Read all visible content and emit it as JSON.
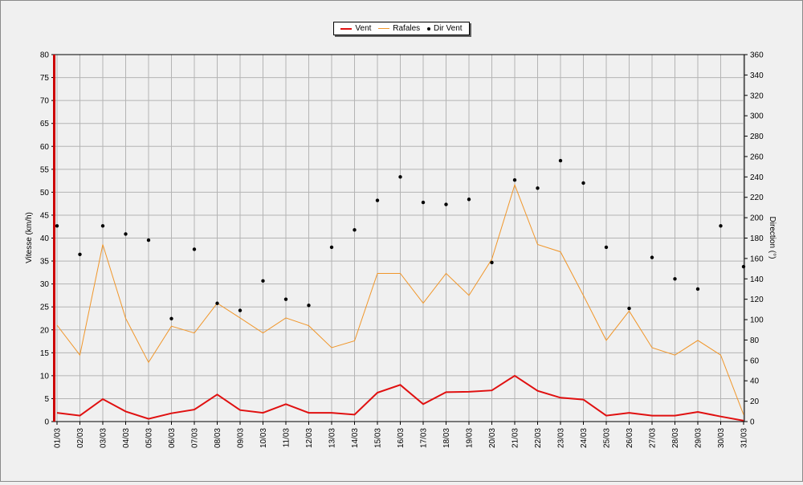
{
  "colors": {
    "vent": "#e01010",
    "rafales": "#f0962a",
    "dir_vent": "#000000",
    "grid": "#b4b4b4",
    "plot_bg": "#f0f0f0"
  },
  "legend": {
    "vent": "Vent",
    "rafales": "Rafales",
    "dir_vent": "Dir Vent"
  },
  "chart_data": {
    "type": "line",
    "title": "",
    "xlabel": "",
    "ylabel": "Vitesse (km/h)",
    "y2label": "Direction (°)",
    "ylim": [
      0,
      80
    ],
    "y2lim": [
      0,
      360
    ],
    "yticks": [
      0,
      5,
      10,
      15,
      20,
      25,
      30,
      35,
      40,
      45,
      50,
      55,
      60,
      65,
      70,
      75,
      80
    ],
    "y2ticks": [
      0,
      20,
      40,
      60,
      80,
      100,
      120,
      140,
      160,
      180,
      200,
      220,
      240,
      260,
      280,
      300,
      320,
      340,
      360
    ],
    "grid": true,
    "legend_position": "top-center",
    "categories": [
      "01/03",
      "02/03",
      "03/03",
      "04/03",
      "05/03",
      "06/03",
      "07/03",
      "08/03",
      "09/03",
      "10/03",
      "11/03",
      "12/03",
      "13/03",
      "14/03",
      "15/03",
      "16/03",
      "17/03",
      "18/03",
      "19/03",
      "20/03",
      "21/03",
      "22/03",
      "23/03",
      "24/03",
      "25/03",
      "26/03",
      "27/03",
      "28/03",
      "29/03",
      "30/03",
      "31/03"
    ],
    "series": [
      {
        "name": "Vent",
        "axis": "left",
        "style": "line",
        "values": [
          1.9,
          1.3,
          4.9,
          2.2,
          0.6,
          1.8,
          2.6,
          5.9,
          2.5,
          1.9,
          3.8,
          1.9,
          1.9,
          1.5,
          6.3,
          8.0,
          3.8,
          6.4,
          6.5,
          6.8,
          10.0,
          6.7,
          5.2,
          4.8,
          1.3,
          1.9,
          1.3,
          1.3,
          2.1,
          1.1,
          0.2
        ]
      },
      {
        "name": "Rafales",
        "axis": "left",
        "style": "line",
        "values": [
          21.0,
          14.5,
          38.6,
          22.5,
          12.9,
          20.8,
          19.3,
          25.8,
          22.6,
          19.3,
          22.6,
          20.9,
          16.1,
          17.6,
          32.3,
          32.3,
          25.8,
          32.3,
          27.5,
          35.4,
          51.6,
          38.6,
          37.0,
          27.5,
          17.7,
          24.1,
          16.1,
          14.5,
          17.7,
          14.5,
          1.5
        ]
      },
      {
        "name": "Dir Vent",
        "axis": "right",
        "style": "points",
        "values": [
          192,
          164,
          192,
          184,
          178,
          101,
          169,
          116,
          109,
          138,
          120,
          114,
          171,
          188,
          217,
          240,
          215,
          213,
          218,
          156,
          237,
          229,
          256,
          234,
          171,
          111,
          161,
          140,
          130,
          192,
          152
        ]
      }
    ]
  }
}
